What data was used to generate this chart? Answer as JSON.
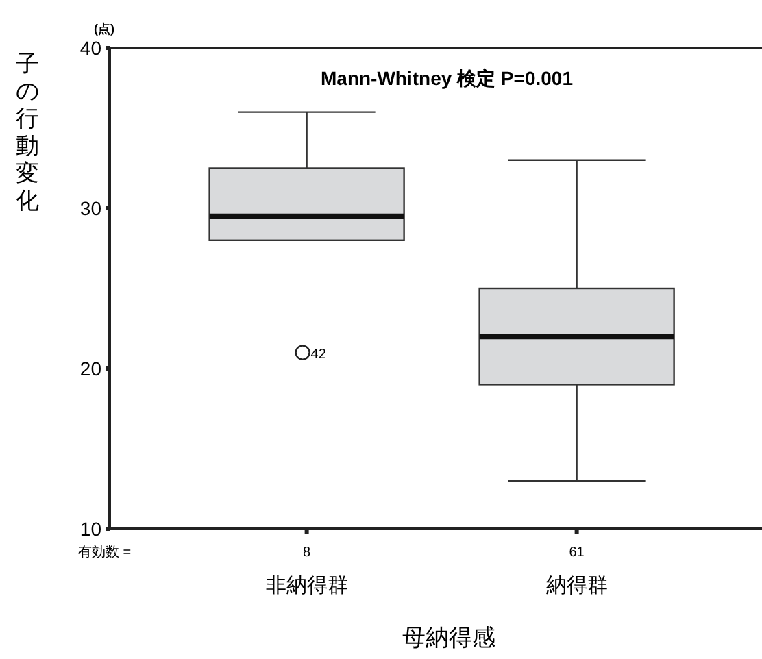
{
  "chart_data": {
    "type": "box",
    "categories": [
      "非納得群",
      "納得群"
    ],
    "xlabel": "母納得感",
    "ylabel": "子の行動変化",
    "ylim": [
      10,
      40
    ],
    "yticks": [
      10,
      20,
      30,
      40
    ],
    "series": [
      {
        "color": "#d9dadc",
        "boxes": [
          {
            "low": 28,
            "q1": 28,
            "median": 29.5,
            "q3": 32.5,
            "high": 36,
            "outliers": [
              21
            ]
          },
          {
            "low": 13,
            "q1": 19,
            "median": 22,
            "q3": 25,
            "high": 33
          }
        ]
      }
    ],
    "annotations": [
      "Mann-Whitney 検定 P=0.001",
      "(点)",
      "有効数 =",
      "8",
      "61",
      "42"
    ]
  }
}
